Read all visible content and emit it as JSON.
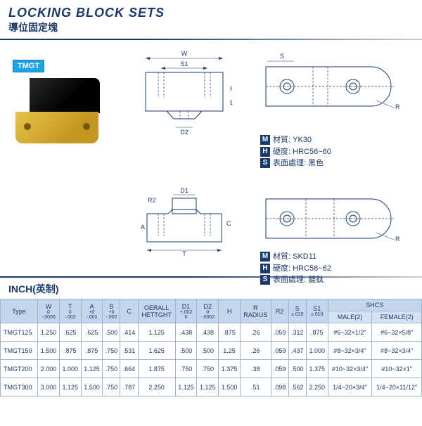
{
  "header": {
    "title_en": "LOCKING BLOCK SETS",
    "title_cn": "導位固定塊",
    "badge": "TMGT"
  },
  "diagrams": {
    "td1": {
      "labels": {
        "W": "W",
        "S1": "S1",
        "D2": "D2",
        "H": "H",
        "B": "B"
      }
    },
    "td2": {
      "labels": {
        "S": "S",
        "R": "R"
      }
    },
    "td3": {
      "labels": {
        "D1": "D1",
        "R2": "R2",
        "A": "A",
        "C": "C",
        "T": "T"
      }
    },
    "td4": {
      "labels": {
        "R": "R"
      }
    }
  },
  "spec1": {
    "m_label": "M",
    "m_key": "材質:",
    "m_val": "YK30",
    "h_label": "H",
    "h_key": "硬度:",
    "h_val": "HRC56~60",
    "s_label": "S",
    "s_key": "表面處理:",
    "s_val": "黑色"
  },
  "spec2": {
    "m_label": "M",
    "m_key": "材質:",
    "m_val": "SKD11",
    "h_label": "H",
    "h_key": "硬度:",
    "h_val": "HRC58~62",
    "s_label": "S",
    "s_key": "表面處理:",
    "s_val": "鍍鈦"
  },
  "inch_label": "INCH(英制)",
  "table": {
    "header_colors": {
      "head_bg": "#d4e2f2",
      "border": "#9ab3d6",
      "text": "#1a3a6e"
    },
    "columns": [
      {
        "label": "Type",
        "tol": ""
      },
      {
        "label": "W",
        "tol": "0\n-.0005"
      },
      {
        "label": "T",
        "tol": "0\n-.002"
      },
      {
        "label": "A",
        "tol": "+0\n-.002"
      },
      {
        "label": "B",
        "tol": "+0\n-.002"
      },
      {
        "label": "C",
        "tol": ""
      },
      {
        "label": "OERALL\nHETTGHT",
        "tol": ""
      },
      {
        "label": "D1",
        "tol": "+.002\n0"
      },
      {
        "label": "D2",
        "tol": "0\n-.0002"
      },
      {
        "label": "H",
        "tol": ""
      },
      {
        "label": "R\nRADIUS",
        "tol": ""
      },
      {
        "label": "R2",
        "tol": ""
      },
      {
        "label": "S",
        "tol": "±.010"
      },
      {
        "label": "S1",
        "tol": "±.010"
      }
    ],
    "shcs_label": "SHCS",
    "shcs_cols": [
      "MALE(2)",
      "FEMALE(2)"
    ],
    "rows": [
      [
        "TMGT125",
        "1.250",
        ".625",
        ".625",
        ".500",
        ".414",
        "1.125",
        ".438",
        ".438",
        ".875",
        ".26",
        ".059",
        ".312",
        ".875",
        "#6~32×1/2\"",
        "#6~32×5/8\""
      ],
      [
        "TMGT150",
        "1.500",
        ".875",
        ".875",
        ".750",
        ".531",
        "1.625",
        ".500",
        ".500",
        "1.25",
        ".26",
        ".059",
        ".437",
        "1.000",
        "#8~32×3/4\"",
        "#8~32×3/4\""
      ],
      [
        "TMGT200",
        "2.000",
        "1.000",
        "1.125",
        ".750",
        ".664",
        "1.875",
        ".750",
        ".750",
        "1.375",
        ".38",
        ".059",
        ".500",
        "1.375",
        "#10~32×3/4\"",
        "#10~32×1\""
      ],
      [
        "TMGT300",
        "3.000",
        "1.125",
        "1.500",
        ".750",
        ".787",
        "2.250",
        "1.125",
        "1.125",
        "1.500",
        ".51",
        ".098",
        ".562",
        "2.250",
        "1/4~20×3/4\"",
        "1/4~20×11/12\""
      ]
    ]
  },
  "colors": {
    "primary": "#1a3a6e",
    "badge_bg": "#1ea3e6",
    "block_top": "#1a1a1a",
    "block_bottom": "#d4a828"
  }
}
